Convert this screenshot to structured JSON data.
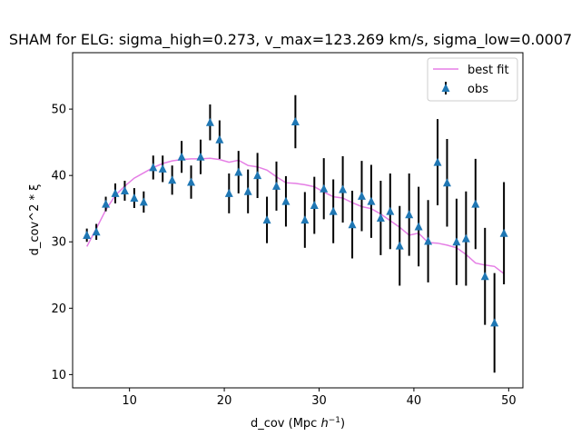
{
  "chart_data": {
    "type": "scatter",
    "title": "SHAM for ELG: sigma_high=0.273, v_max=123.269 km/s, sigma_low=0.0007",
    "xlabel": "d_cov (Mpc ",
    "xlabel_unit": "h",
    "xlabel_exp": "−1",
    "xlabel_close": ")",
    "ylabel": "d_cov^2 * ξ",
    "xlim": [
      4,
      51.5
    ],
    "ylim": [
      8,
      58.5
    ],
    "xticks": [
      10,
      20,
      30,
      40,
      50
    ],
    "yticks": [
      10,
      20,
      30,
      40,
      50
    ],
    "grid": false,
    "legend_position": "top-right",
    "colors": {
      "best_fit": "#e57ee5",
      "obs": "#1f77b4",
      "errorbar": "#000000"
    },
    "series": [
      {
        "name": "best fit",
        "kind": "line",
        "x": [
          5.5,
          6.5,
          7.5,
          8.5,
          9.5,
          10.5,
          11.5,
          12.5,
          13.5,
          14.5,
          15.5,
          16.5,
          17.5,
          18.5,
          19.5,
          20.5,
          21.5,
          22.5,
          23.5,
          24.5,
          25.5,
          26.5,
          27.5,
          28.5,
          29.5,
          30.5,
          31.5,
          32.5,
          33.5,
          34.5,
          35.5,
          36.5,
          37.5,
          38.5,
          39.5,
          40.5,
          41.5,
          42.5,
          43.5,
          44.5,
          45.5,
          46.5,
          47.5,
          48.5,
          49.5
        ],
        "y": [
          29.3,
          32.0,
          34.8,
          37.0,
          38.4,
          39.6,
          40.4,
          41.2,
          41.8,
          42.2,
          42.4,
          42.5,
          42.5,
          42.6,
          42.4,
          42.0,
          42.3,
          41.5,
          41.3,
          40.8,
          39.8,
          38.9,
          38.8,
          38.6,
          38.3,
          37.5,
          36.8,
          36.6,
          35.9,
          35.3,
          35.0,
          34.2,
          33.2,
          32.2,
          31.0,
          31.3,
          29.9,
          29.8,
          29.5,
          29.1,
          28.1,
          26.8,
          26.5,
          26.3,
          25.2
        ]
      },
      {
        "name": "obs",
        "kind": "errorbar",
        "x": [
          5.5,
          6.5,
          7.5,
          8.5,
          9.5,
          10.5,
          11.5,
          12.5,
          13.5,
          14.5,
          15.5,
          16.5,
          17.5,
          18.5,
          19.5,
          20.5,
          21.5,
          22.5,
          23.5,
          24.5,
          25.5,
          26.5,
          27.5,
          28.5,
          29.5,
          30.5,
          31.5,
          32.5,
          33.5,
          34.5,
          35.5,
          36.5,
          37.5,
          38.5,
          39.5,
          40.5,
          41.5,
          42.5,
          43.5,
          44.5,
          45.5,
          46.5,
          47.5,
          48.5,
          49.5
        ],
        "y": [
          31.0,
          31.5,
          35.7,
          37.3,
          37.7,
          36.6,
          36.0,
          41.2,
          41.0,
          39.3,
          42.8,
          39.0,
          42.8,
          48.0,
          45.4,
          37.3,
          40.5,
          37.6,
          40.0,
          33.3,
          38.4,
          36.1,
          48.1,
          33.3,
          35.5,
          38.0,
          34.6,
          37.9,
          32.6,
          36.9,
          36.1,
          33.6,
          34.6,
          29.4,
          34.1,
          32.3,
          30.1,
          42.0,
          38.9,
          30.0,
          30.5,
          35.7,
          24.8,
          17.8,
          31.3
        ],
        "yerr": [
          1.0,
          1.2,
          1.1,
          1.5,
          1.5,
          1.5,
          1.6,
          1.8,
          2.0,
          2.2,
          2.4,
          2.5,
          2.6,
          2.7,
          2.9,
          3.0,
          3.2,
          3.3,
          3.4,
          3.5,
          3.7,
          3.8,
          4.0,
          4.2,
          4.3,
          4.6,
          4.8,
          5.0,
          5.1,
          5.3,
          5.5,
          5.6,
          5.7,
          6.0,
          6.2,
          6.0,
          6.2,
          6.5,
          6.6,
          6.5,
          7.1,
          6.8,
          7.3,
          7.5,
          7.7
        ]
      }
    ]
  }
}
